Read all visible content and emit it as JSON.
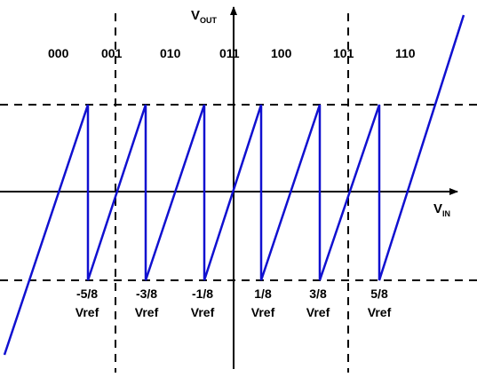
{
  "axes": {
    "x_label": "V",
    "x_label_sub": "IN",
    "y_label": "V",
    "y_label_sub": "OUT"
  },
  "codes": [
    "000",
    "001",
    "010",
    "011",
    "100",
    "101",
    "110"
  ],
  "ticks": [
    {
      "value": "-5/8",
      "unit": "Vref"
    },
    {
      "value": "-3/8",
      "unit": "Vref"
    },
    {
      "value": "-1/8",
      "unit": "Vref"
    },
    {
      "value": "1/8",
      "unit": "Vref"
    },
    {
      "value": "3/8",
      "unit": "Vref"
    },
    {
      "value": "5/8",
      "unit": "Vref"
    }
  ],
  "colors": {
    "waveform": "#1010d0",
    "axes": "#000000",
    "dashed_lines": "#000000"
  }
}
